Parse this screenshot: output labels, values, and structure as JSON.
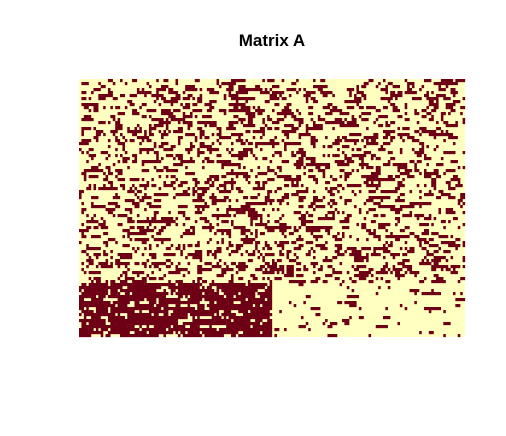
{
  "chart_data": {
    "type": "heatmap",
    "title": "Matrix A",
    "xlabel": "",
    "ylabel": "",
    "axes_visible": false,
    "grid": false,
    "legend": "none",
    "binary_values": [
      0,
      1
    ],
    "colors": {
      "zero": "#ffffc0",
      "one": "#6e0016",
      "background": "#ffffff",
      "title": "#000000"
    },
    "regions": [
      {
        "name": "upper-block",
        "rows_fraction": [
          0.0,
          0.79
        ],
        "cols_fraction": [
          0.0,
          1.0
        ],
        "density_of_ones": 0.28
      },
      {
        "name": "lower-left-dense-block",
        "rows_fraction": [
          0.79,
          1.0
        ],
        "cols_fraction": [
          0.0,
          0.5
        ],
        "density_of_ones": 0.82
      },
      {
        "name": "lower-right-sparse-block",
        "rows_fraction": [
          0.79,
          1.0
        ],
        "cols_fraction": [
          0.5,
          1.0
        ],
        "density_of_ones": 0.05
      }
    ]
  }
}
